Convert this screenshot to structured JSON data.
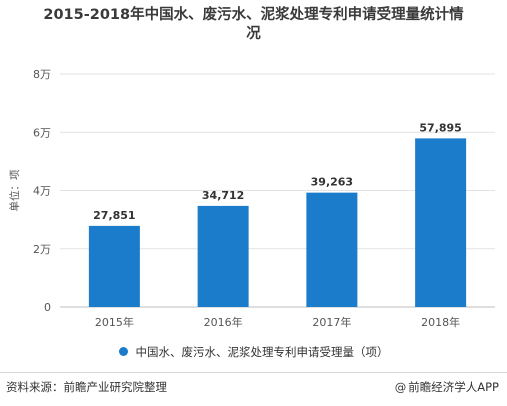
{
  "title_line1": "2015-2018年中国水、废污水、泥浆处理专利申请受理量统计情",
  "title_line2": "况",
  "chart_data": {
    "type": "bar",
    "categories": [
      "2015年",
      "2016年",
      "2017年",
      "2018年"
    ],
    "series": [
      {
        "name": "中国水、废污水、泥浆处理专利申请受理量（项）",
        "values": [
          27851,
          34712,
          39263,
          57895
        ],
        "labels": [
          "27,851",
          "34,712",
          "39,263",
          "57,895"
        ],
        "color": "#1a7ccb"
      }
    ],
    "ylabel": "单位：项",
    "ylim": [
      0,
      80000
    ],
    "yticks": [
      0,
      20000,
      40000,
      60000,
      80000
    ],
    "ytick_labels": [
      "0",
      "2万",
      "4万",
      "6万",
      "8万"
    ],
    "grid": true,
    "legend_position": "bottom"
  },
  "footer": {
    "source": "资料来源：前瞻产业研究院整理",
    "copyright_symbol": "@",
    "brand": "前瞻经济学人APP"
  }
}
